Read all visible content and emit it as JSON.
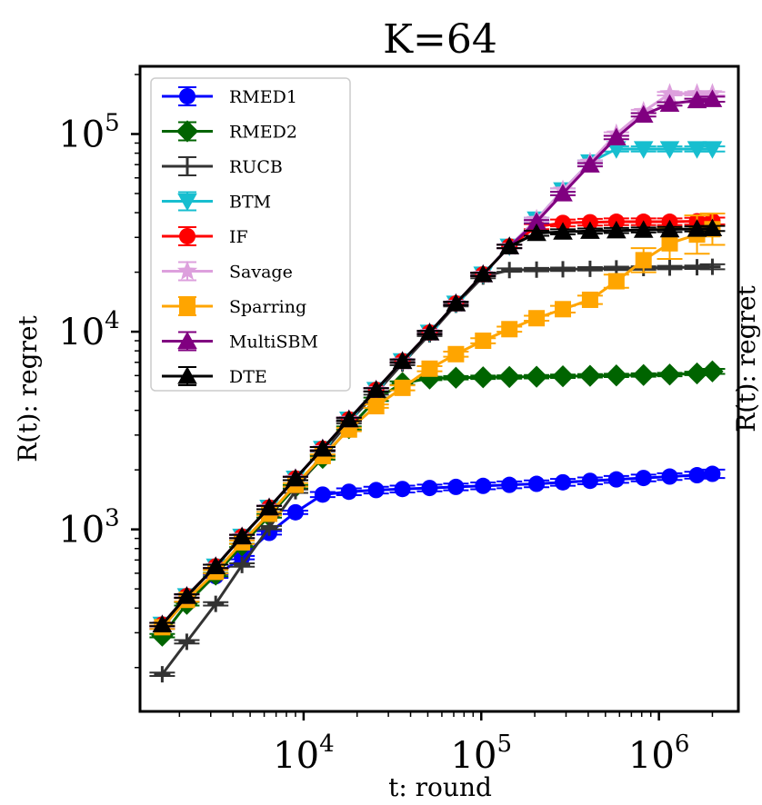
{
  "chart_data": {
    "type": "line",
    "title": "K=64",
    "xlabel": "t: round",
    "ylabel": "R(t): regret",
    "ylabel_clipped_right": "R(t): regret",
    "x_scale": "log",
    "y_scale": "log",
    "xlim": [
      1200,
      2800000
    ],
    "ylim": [
      120,
      220000
    ],
    "x_ticks": [
      {
        "value": 10000,
        "base": "10",
        "exp": "4"
      },
      {
        "value": 100000,
        "base": "10",
        "exp": "5"
      },
      {
        "value": 1000000,
        "base": "10",
        "exp": "6"
      }
    ],
    "y_ticks": [
      {
        "value": 1000,
        "base": "10",
        "exp": "3"
      },
      {
        "value": 10000,
        "base": "10",
        "exp": "4"
      },
      {
        "value": 100000,
        "base": "10",
        "exp": "5"
      }
    ],
    "grid": false,
    "legend_position": "top-left",
    "x": [
      1600,
      2200,
      3200,
      4500,
      6400,
      9000,
      12800,
      18000,
      25600,
      36000,
      51200,
      72000,
      102400,
      144000,
      204800,
      288000,
      409600,
      576000,
      819200,
      1150000,
      1638400,
      2000000
    ],
    "series": [
      {
        "name": "RMED1",
        "color": "#0000ff",
        "marker": "circle",
        "values": [
          320,
          440,
          580,
          720,
          960,
          1220,
          1500,
          1550,
          1580,
          1600,
          1620,
          1640,
          1660,
          1680,
          1700,
          1730,
          1760,
          1790,
          1820,
          1850,
          1880,
          1910
        ],
        "err": [
          0.02,
          0.02,
          0.02,
          0.02,
          0.02,
          0.02,
          0.03,
          0.04,
          0.04,
          0.04,
          0.04,
          0.04,
          0.04,
          0.04,
          0.04,
          0.04,
          0.04,
          0.04,
          0.04,
          0.04,
          0.04,
          0.05
        ]
      },
      {
        "name": "RMED2",
        "color": "#006400",
        "marker": "diamond",
        "values": [
          290,
          420,
          590,
          830,
          1170,
          1640,
          2300,
          3250,
          4550,
          5500,
          5800,
          5850,
          5880,
          5900,
          5920,
          5950,
          5980,
          6010,
          6040,
          6070,
          6150,
          6300
        ],
        "err": [
          0.02,
          0.02,
          0.02,
          0.02,
          0.02,
          0.02,
          0.02,
          0.02,
          0.02,
          0.02,
          0.02,
          0.02,
          0.02,
          0.02,
          0.02,
          0.02,
          0.02,
          0.02,
          0.02,
          0.02,
          0.02,
          0.03
        ]
      },
      {
        "name": "RUCB",
        "color": "#333333",
        "marker": "plus",
        "values": [
          185,
          270,
          420,
          660,
          1020,
          1560,
          2430,
          3500,
          4900,
          6900,
          9700,
          13700,
          19000,
          20500,
          20600,
          20700,
          20800,
          20900,
          21000,
          21100,
          21200,
          21300
        ],
        "err": [
          0.02,
          0.02,
          0.02,
          0.02,
          0.02,
          0.02,
          0.02,
          0.02,
          0.02,
          0.02,
          0.02,
          0.02,
          0.02,
          0.02,
          0.02,
          0.02,
          0.02,
          0.02,
          0.02,
          0.02,
          0.02,
          0.03
        ]
      },
      {
        "name": "BTM",
        "color": "#17becf",
        "marker": "triangle-down",
        "values": [
          330,
          460,
          650,
          920,
          1290,
          1810,
          2560,
          3600,
          5080,
          7100,
          9900,
          13900,
          19500,
          27000,
          37000,
          52000,
          72000,
          84000,
          84000,
          84000,
          84000,
          84000
        ],
        "err": [
          0.02,
          0.02,
          0.02,
          0.02,
          0.02,
          0.02,
          0.02,
          0.02,
          0.02,
          0.02,
          0.02,
          0.02,
          0.02,
          0.02,
          0.02,
          0.02,
          0.02,
          0.03,
          0.03,
          0.03,
          0.03,
          0.03
        ]
      },
      {
        "name": "IF",
        "color": "#ff0000",
        "marker": "circle",
        "values": [
          330,
          460,
          650,
          920,
          1290,
          1810,
          2560,
          3600,
          5080,
          7100,
          9900,
          13900,
          19500,
          27000,
          34000,
          35500,
          35800,
          36000,
          36000,
          36000,
          36200,
          36300
        ],
        "err": [
          0.02,
          0.02,
          0.02,
          0.02,
          0.02,
          0.02,
          0.02,
          0.02,
          0.02,
          0.02,
          0.02,
          0.02,
          0.02,
          0.02,
          0.03,
          0.04,
          0.04,
          0.04,
          0.04,
          0.04,
          0.04,
          0.04
        ]
      },
      {
        "name": "Savage",
        "color": "#dda0dd",
        "marker": "star",
        "values": [
          330,
          460,
          650,
          920,
          1290,
          1810,
          2560,
          3600,
          5080,
          7100,
          9900,
          13900,
          19500,
          27000,
          37000,
          52000,
          72000,
          100000,
          130000,
          160000,
          160000,
          160000
        ],
        "err": [
          0.02,
          0.02,
          0.02,
          0.02,
          0.02,
          0.02,
          0.02,
          0.02,
          0.02,
          0.02,
          0.02,
          0.02,
          0.02,
          0.02,
          0.02,
          0.02,
          0.02,
          0.02,
          0.02,
          0.02,
          0.02,
          0.02
        ]
      },
      {
        "name": "Sparring",
        "color": "#ffa500",
        "marker": "square",
        "values": [
          320,
          440,
          610,
          860,
          1200,
          1680,
          2350,
          3200,
          4200,
          5200,
          6500,
          7700,
          9000,
          10300,
          11700,
          13000,
          14500,
          18000,
          23000,
          28000,
          31000,
          33000
        ],
        "err": [
          0.02,
          0.02,
          0.02,
          0.02,
          0.02,
          0.02,
          0.02,
          0.02,
          0.02,
          0.03,
          0.03,
          0.03,
          0.03,
          0.03,
          0.03,
          0.04,
          0.05,
          0.08,
          0.15,
          0.2,
          0.25,
          0.2
        ]
      },
      {
        "name": "MultiSBM",
        "color": "#800080",
        "marker": "triangle-up",
        "values": [
          330,
          460,
          650,
          920,
          1290,
          1810,
          2560,
          3600,
          5080,
          7100,
          9900,
          13900,
          19500,
          27000,
          36000,
          50000,
          70000,
          96000,
          125000,
          142000,
          148000,
          150000
        ],
        "err": [
          0.02,
          0.02,
          0.02,
          0.02,
          0.02,
          0.02,
          0.02,
          0.02,
          0.02,
          0.02,
          0.02,
          0.02,
          0.02,
          0.02,
          0.02,
          0.02,
          0.02,
          0.02,
          0.02,
          0.02,
          0.02,
          0.03
        ]
      },
      {
        "name": "DTE",
        "color": "#000000",
        "marker": "triangle-up",
        "values": [
          330,
          460,
          650,
          920,
          1290,
          1810,
          2560,
          3600,
          5080,
          7100,
          9900,
          13900,
          19500,
          27000,
          31500,
          32000,
          32300,
          32500,
          32700,
          32900,
          33100,
          33300
        ],
        "err": [
          0.02,
          0.02,
          0.02,
          0.02,
          0.02,
          0.02,
          0.02,
          0.02,
          0.02,
          0.02,
          0.02,
          0.02,
          0.02,
          0.02,
          0.03,
          0.03,
          0.03,
          0.03,
          0.03,
          0.03,
          0.03,
          0.03
        ]
      }
    ]
  }
}
